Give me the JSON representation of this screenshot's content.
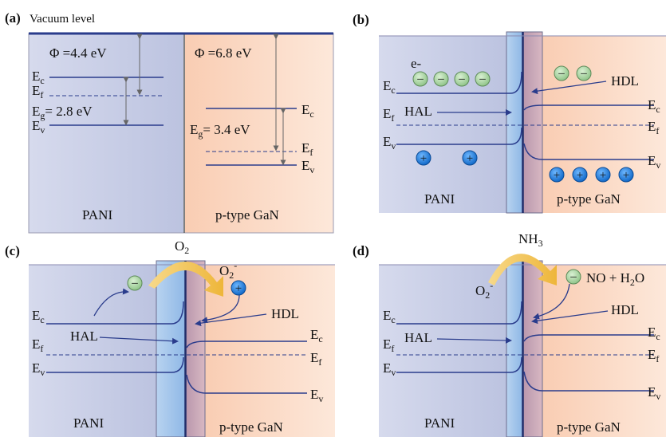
{
  "panels": {
    "a": {
      "tag": "(a)",
      "vacuum_label": "Vacuum level",
      "left": {
        "phi": "Φ =4.4 eV",
        "eg": "E",
        "eg_sub": "g",
        "eg_val": "= 2.8 eV",
        "material": "PANI"
      },
      "right": {
        "phi": "Φ =6.8 eV",
        "eg": "E",
        "eg_sub": "g",
        "eg_val": "= 3.4 eV",
        "material": "p-type GaN"
      },
      "levels": {
        "ec": "E",
        "ec_sub": "c",
        "ef": "E",
        "ef_sub": "f",
        "ev": "E",
        "ev_sub": "v"
      }
    },
    "b": {
      "tag": "(b)",
      "electron": "e-",
      "hal": "HAL",
      "hdl": "HDL",
      "left_material": "PANI",
      "right_material": "p-type GaN",
      "hole_sign": "+",
      "electron_sign": "–"
    },
    "c": {
      "tag": "(c)",
      "gas": "O",
      "gas_sub": "2",
      "ion": "O",
      "ion_sub": "2",
      "ion_sup": "-",
      "hal": "HAL",
      "hdl": "HDL",
      "left_material": "PANI",
      "right_material": "p-type GaN",
      "hole_sign": "+",
      "electron_sign": "–"
    },
    "d": {
      "tag": "(d)",
      "gas": "NH",
      "gas_sub": "3",
      "ion": "O",
      "ion_sub": "2",
      "ion_sup": "-",
      "product_a": "NO + H",
      "product_sub": "2",
      "product_b": "O",
      "hal": "HAL",
      "hdl": "HDL",
      "left_material": "PANI",
      "right_material": "p-type GaN",
      "electron_sign": "–"
    }
  },
  "level_names": {
    "e": "E",
    "c": "c",
    "f": "f",
    "v": "v"
  },
  "colors": {
    "pani_bg": "#c9cfe6",
    "gan_bg": "#fbd9c3",
    "interface_blue": "#a8c8ec",
    "interface_mauve": "#c9a7b8",
    "line": "#2a3c8c",
    "arrow": "#f2c14e",
    "electron_fill": "#a5d6a0",
    "hole_fill": "#1f7fe0"
  }
}
